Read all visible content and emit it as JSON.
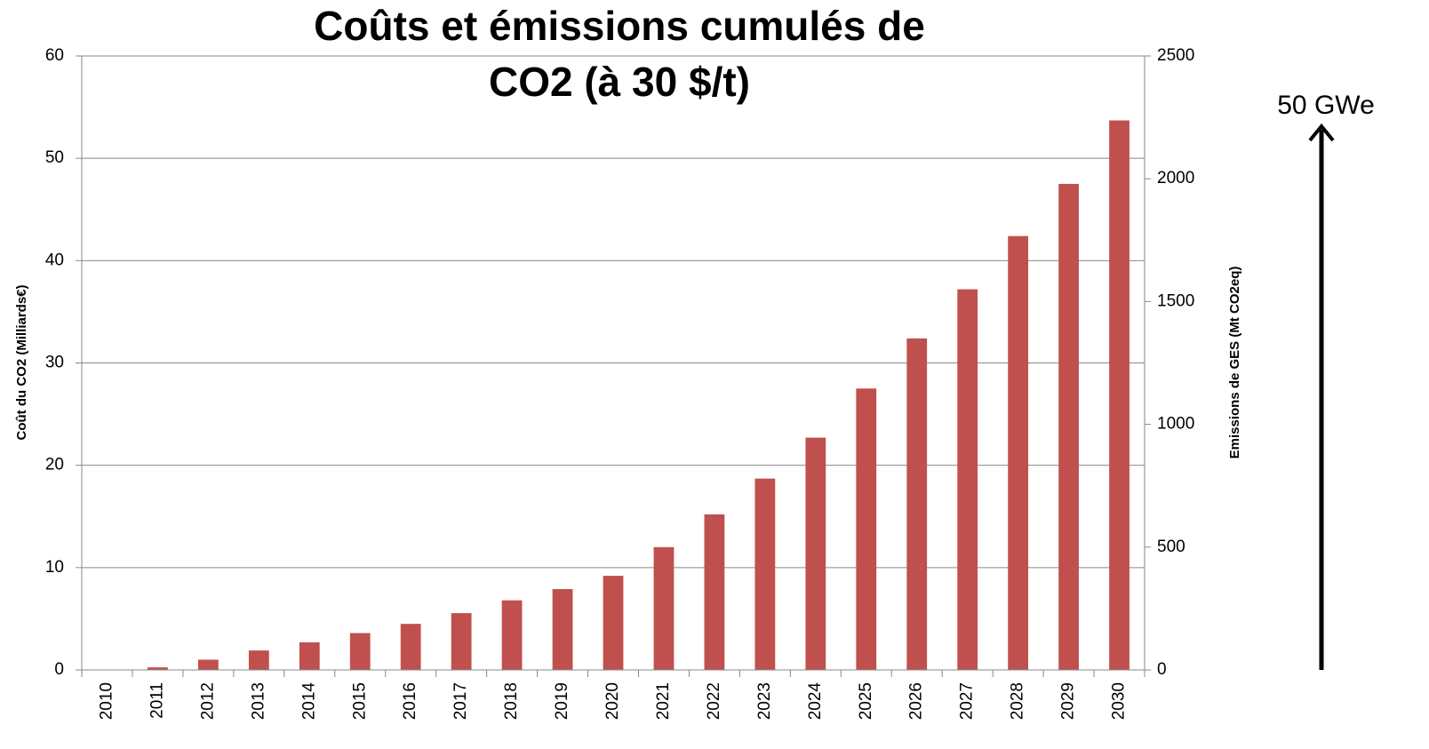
{
  "chart_data": {
    "type": "bar",
    "title": [
      "Coûts et émissions cumulés de",
      "CO2 (à 30 $/t)"
    ],
    "ylabel": "Coût du CO2 (Milliards€)",
    "y2label": "Emissions de GES (Mt  CO2eq)",
    "annotation": "50 GWe",
    "categories": [
      "2010",
      "2011",
      "2012",
      "2013",
      "2014",
      "2015",
      "2016",
      "2017",
      "2018",
      "2019",
      "2020",
      "2021",
      "2022",
      "2023",
      "2024",
      "2025",
      "2026",
      "2027",
      "2028",
      "2029",
      "2030"
    ],
    "values": [
      0,
      0.25,
      1.0,
      1.9,
      2.7,
      3.6,
      4.5,
      5.55,
      6.8,
      7.9,
      9.2,
      12.0,
      15.2,
      18.7,
      22.7,
      27.5,
      32.4,
      37.2,
      42.4,
      47.5,
      53.7
    ],
    "color": "#c0504d",
    "ylim": [
      0,
      60
    ],
    "yticks": [
      0,
      10,
      20,
      30,
      40,
      50,
      60
    ],
    "y2lim": [
      0,
      2500
    ],
    "y2ticks": [
      0,
      500,
      1000,
      1500,
      2000,
      2500
    ],
    "grid": true
  }
}
